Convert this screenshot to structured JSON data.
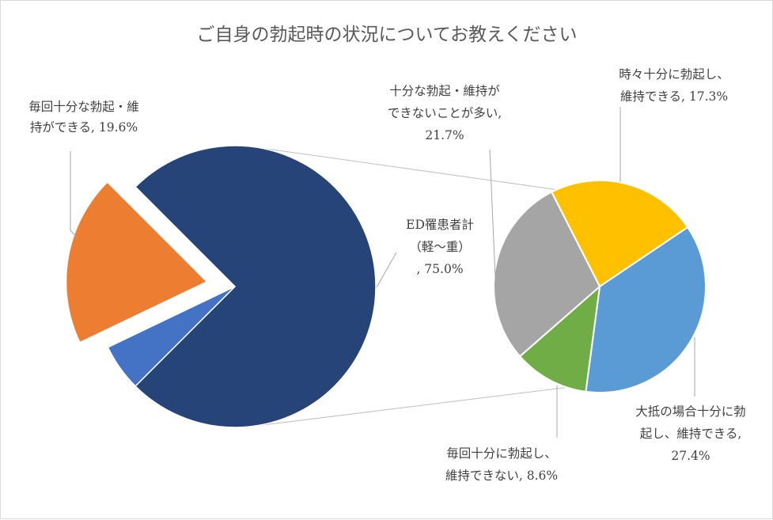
{
  "chart_data": {
    "type": "pie",
    "subtype": "pie-of-pie",
    "title": "ご自身の勃起時の状況についてお教えください",
    "main_pie": {
      "slices": [
        {
          "key": "ed",
          "label_lines": [
            "ED罹患者計",
            "（軽～重）",
            ", 75.0%"
          ],
          "value": 75.0,
          "color": "#264478"
        },
        {
          "key": "blue",
          "label_lines": [],
          "value": 5.4,
          "color": "#4472c4"
        },
        {
          "key": "good",
          "label_lines": [
            "毎回十分な勃起・維",
            "持ができる, 19.6%"
          ],
          "value": 19.6,
          "color": "#ed7d31",
          "exploded": true
        }
      ]
    },
    "secondary_pie": {
      "slices": [
        {
          "key": "sometimes",
          "label_lines": [
            "時々十分に勃起し、",
            "維持できる, 17.3%"
          ],
          "value": 17.3,
          "color": "#ffc000"
        },
        {
          "key": "mostly",
          "label_lines": [
            "大抵の場合十分に勃",
            "起し、維持できる,",
            "27.4%"
          ],
          "value": 27.4,
          "color": "#5b9bd5"
        },
        {
          "key": "never",
          "label_lines": [
            "毎回十分に勃起し、",
            "維持できない, 8.6%"
          ],
          "value": 8.6,
          "color": "#70ad47"
        },
        {
          "key": "often_not",
          "label_lines": [
            "十分な勃起・維持が",
            "できないことが多い,",
            "21.7%"
          ],
          "value": 21.7,
          "color": "#a5a5a5"
        }
      ]
    },
    "legend": "none"
  }
}
